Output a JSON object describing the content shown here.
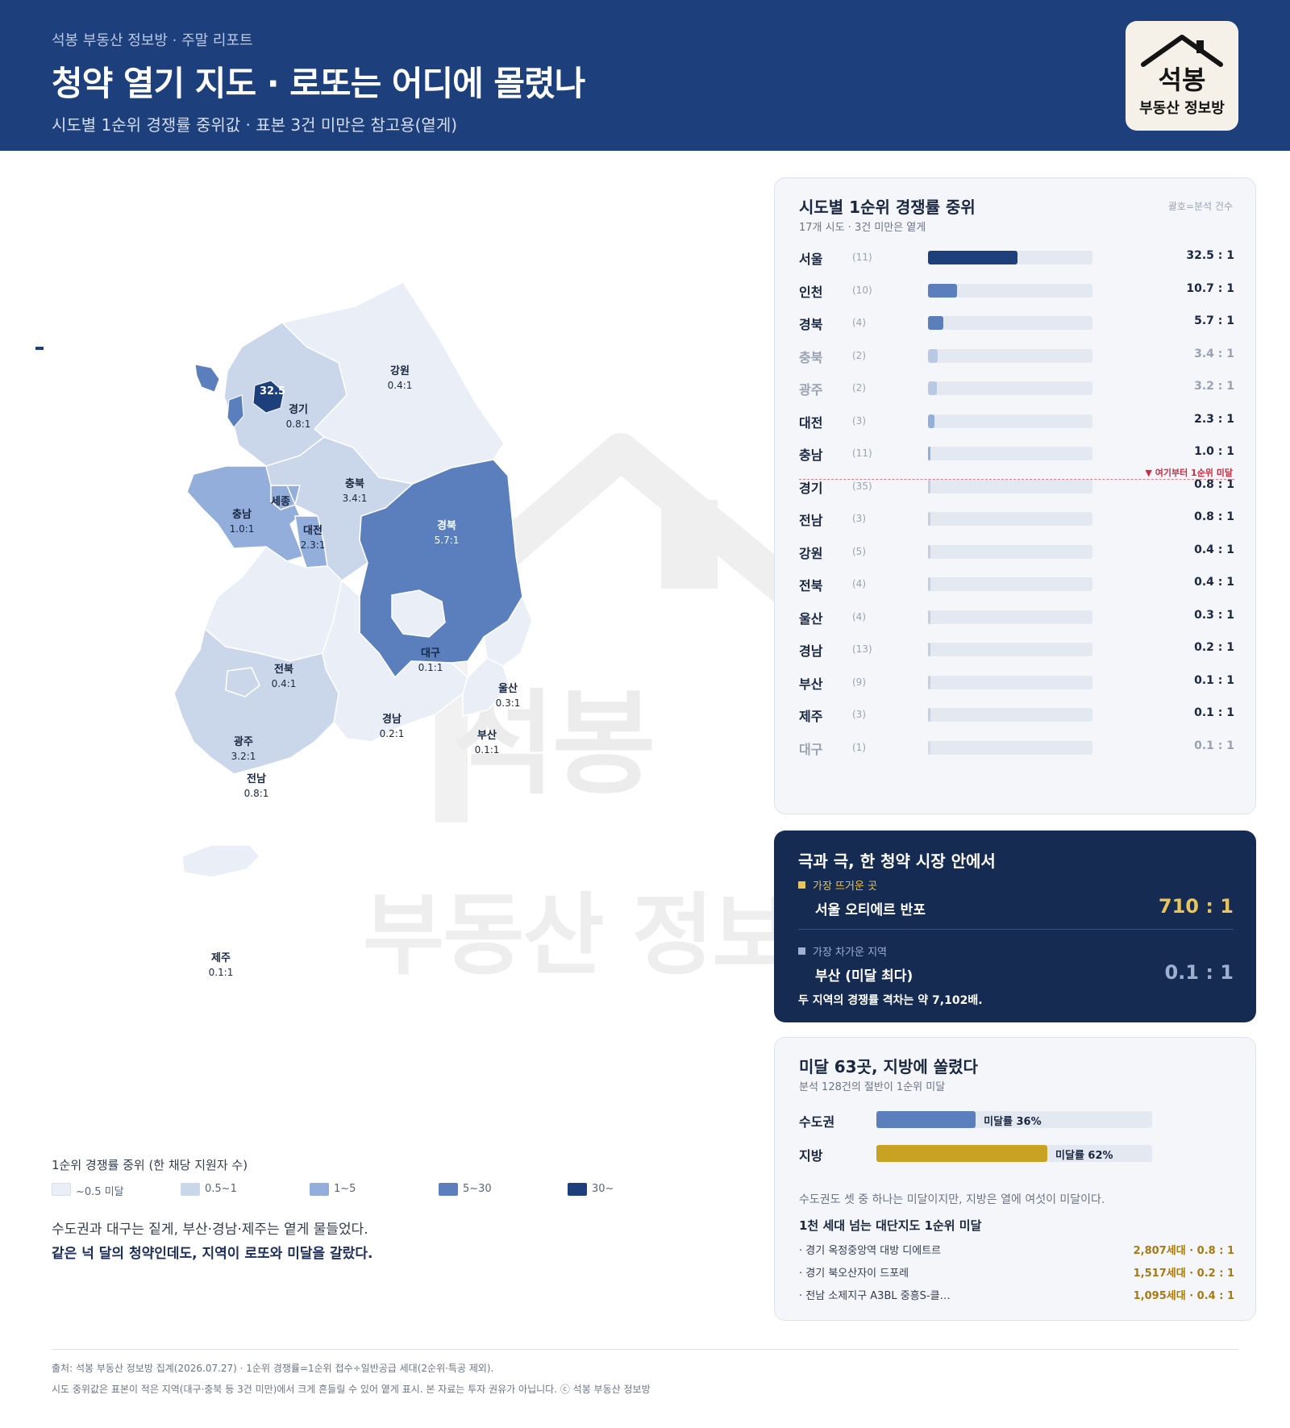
{
  "header": {
    "kicker": "석봉 부동산 정보방 · 주말 리포트",
    "title": "청약 열기 지도 · 로또는 어디에 몰렸나",
    "subtitle": "시도별 1순위 경쟁률 중위값 · 표본 3건 미만은 참고용(옅게)"
  },
  "logo": {
    "name": "석봉",
    "sub": "부동산 정보방"
  },
  "watermark": {
    "line1": "석봉",
    "line2": "부동산 정보"
  },
  "colors": {
    "header_bg": "#1d3f7c",
    "tier_lt05": "#e9eef7",
    "tier_05_1": "#cad6ea",
    "tier_1_5": "#93aedb",
    "tier_5_30": "#5b7fbd",
    "tier_30p": "#1d3f7c",
    "accent_gold": "#c9a224",
    "danger": "#c62f42"
  },
  "map": {
    "regions": [
      {
        "name": "서울",
        "value": "32.5"
      },
      {
        "name": "경기",
        "value": "0.8:1"
      },
      {
        "name": "강원",
        "value": "0.4:1"
      },
      {
        "name": "충북",
        "value": "3.4:1"
      },
      {
        "name": "충남",
        "value": "1.0:1"
      },
      {
        "name": "세종",
        "value": ""
      },
      {
        "name": "대전",
        "value": "2.3:1"
      },
      {
        "name": "경북",
        "value": "5.7:1"
      },
      {
        "name": "대구",
        "value": "0.1:1"
      },
      {
        "name": "전북",
        "value": "0.4:1"
      },
      {
        "name": "울산",
        "value": "0.3:1"
      },
      {
        "name": "경남",
        "value": "0.2:1"
      },
      {
        "name": "부산",
        "value": "0.1:1"
      },
      {
        "name": "광주",
        "value": "3.2:1"
      },
      {
        "name": "전남",
        "value": "0.8:1"
      },
      {
        "name": "제주",
        "value": "0.1:1"
      }
    ]
  },
  "legend": {
    "title": "1순위 경쟁률 중위 (한 채당 지원자 수)",
    "items": [
      {
        "label": "~0.5 미달",
        "color": "#e9eef7"
      },
      {
        "label": "0.5~1",
        "color": "#cad6ea"
      },
      {
        "label": "1~5",
        "color": "#93aedb"
      },
      {
        "label": "5~30",
        "color": "#5b7fbd"
      },
      {
        "label": "30~",
        "color": "#1d3f7c"
      }
    ]
  },
  "caption": {
    "line1": "수도권과 대구는 짙게, 부산·경남·제주는 옅게 물들었다.",
    "line2": "같은 넉 달의 청약인데도, 지역이 로또와 미달을 갈랐다."
  },
  "ranking": {
    "title": "시도별 1순위 경쟁률 중위",
    "subtitle": "17개 시도 · 3건 미만은 옅게",
    "note": "괄호=분석 건수",
    "cutoff_label": "▼ 여기부터 1순위 미달",
    "max_scale": 60,
    "rows": [
      {
        "name": "서울",
        "count": "(11)",
        "value": 32.5,
        "label": "32.5 : 1",
        "dim": false
      },
      {
        "name": "인천",
        "count": "(10)",
        "value": 10.7,
        "label": "10.7 : 1",
        "dim": false
      },
      {
        "name": "경북",
        "count": "(4)",
        "value": 5.7,
        "label": "5.7 : 1",
        "dim": false
      },
      {
        "name": "충북",
        "count": "(2)",
        "value": 3.4,
        "label": "3.4 : 1",
        "dim": true
      },
      {
        "name": "광주",
        "count": "(2)",
        "value": 3.2,
        "label": "3.2 : 1",
        "dim": true
      },
      {
        "name": "대전",
        "count": "(3)",
        "value": 2.3,
        "label": "2.3 : 1",
        "dim": false
      },
      {
        "name": "충남",
        "count": "(11)",
        "value": 1.0,
        "label": "1.0 : 1",
        "dim": false
      },
      {
        "name": "경기",
        "count": "(35)",
        "value": 0.8,
        "label": "0.8 : 1",
        "dim": false
      },
      {
        "name": "전남",
        "count": "(3)",
        "value": 0.8,
        "label": "0.8 : 1",
        "dim": false
      },
      {
        "name": "강원",
        "count": "(5)",
        "value": 0.4,
        "label": "0.4 : 1",
        "dim": false
      },
      {
        "name": "전북",
        "count": "(4)",
        "value": 0.4,
        "label": "0.4 : 1",
        "dim": false
      },
      {
        "name": "울산",
        "count": "(4)",
        "value": 0.3,
        "label": "0.3 : 1",
        "dim": false
      },
      {
        "name": "경남",
        "count": "(13)",
        "value": 0.2,
        "label": "0.2 : 1",
        "dim": false
      },
      {
        "name": "부산",
        "count": "(9)",
        "value": 0.1,
        "label": "0.1 : 1",
        "dim": false
      },
      {
        "name": "제주",
        "count": "(3)",
        "value": 0.1,
        "label": "0.1 : 1",
        "dim": false
      },
      {
        "name": "대구",
        "count": "(1)",
        "value": 0.1,
        "label": "0.1 : 1",
        "dim": true
      }
    ]
  },
  "extremes": {
    "title": "극과 극, 한 청약 시장 안에서",
    "hot_tag": "가장 뜨거운 곳",
    "hot_name": "서울 오티에르 반포",
    "hot_value": "710 : 1",
    "cold_tag": "가장 차가운 지역",
    "cold_name": "부산 (미달 최다)",
    "cold_value": "0.1 : 1",
    "footnote": "두 지역의 경쟁률 격차는 약 7,102배."
  },
  "unsold": {
    "title": "미달 63곳, 지방에 쏠렸다",
    "subtitle": "분석 128건의 절반이 1순위 미달",
    "bars": [
      {
        "name": "수도권",
        "label": "미달률 36%",
        "pct": 36
      },
      {
        "name": "지방",
        "label": "미달률 62%",
        "pct": 62
      }
    ],
    "desc": "수도권도 셋 중 하나는 미달이지만, 지방은 열에 여섯이 미달이다.",
    "list_title": "1천 세대 넘는 대단지도 1순위 미달",
    "items": [
      {
        "name": "· 경기 옥정중앙역 대방 디에트르",
        "value": "2,807세대 · 0.8 : 1"
      },
      {
        "name": "· 경기 북오산자이 드포레",
        "value": "1,517세대 · 0.2 : 1"
      },
      {
        "name": "· 전남 소제지구 A3BL 중흥S-클…",
        "value": "1,095세대 · 0.4 : 1"
      }
    ]
  },
  "footer": {
    "line1": "출처: 석봉 부동산 정보방 집계(2026.07.27) · 1순위 경쟁률=1순위 접수÷일반공급 세대(2순위·특공 제외).",
    "line2": "시도 중위값은 표본이 적은 지역(대구·충북 등 3건 미만)에서 크게 흔들릴 수 있어 옅게 표시. 본 자료는 투자 권유가 아닙니다. ⓒ 석봉 부동산 정보방"
  }
}
